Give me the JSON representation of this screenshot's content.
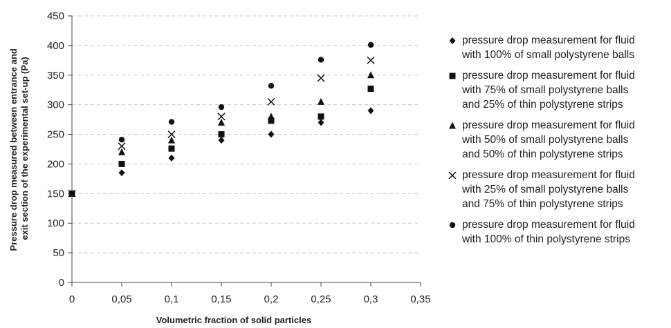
{
  "chart_data": {
    "type": "scatter",
    "xlabel": "Volumetric fraction of solid particles",
    "ylabel_lines": [
      "Pressure drop measured between entrance and",
      "exit section of the experimental set-up (Pa)"
    ],
    "xlim": [
      0,
      0.35
    ],
    "ylim": [
      0,
      450
    ],
    "x_ticks": [
      "0",
      "0,05",
      "0,1",
      "0,15",
      "0,2",
      "0,25",
      "0,3",
      "0,35"
    ],
    "y_ticks": [
      "0",
      "50",
      "100",
      "150",
      "200",
      "250",
      "300",
      "350",
      "400",
      "450"
    ],
    "grid": "horizontal dashed",
    "legend_position": "right",
    "series": [
      {
        "name": "pressure drop measurement for fluid with 100% of small polystyrene balls",
        "legend_lines": [
          "pressure drop measurement for fluid",
          "with 100% of small polystyrene balls"
        ],
        "marker": "diamond",
        "points": [
          [
            0,
            150
          ],
          [
            0.05,
            185
          ],
          [
            0.1,
            210
          ],
          [
            0.15,
            240
          ],
          [
            0.2,
            250
          ],
          [
            0.25,
            270
          ],
          [
            0.3,
            290
          ]
        ]
      },
      {
        "name": "pressure drop measurement for fluid with 75% of small polystyrene balls and 25% of thin polystyrene strips",
        "legend_lines": [
          "pressure drop measurement for fluid",
          "with 75% of small polystyrene balls",
          "and 25% of thin polystyrene strips"
        ],
        "marker": "square",
        "points": [
          [
            0,
            150
          ],
          [
            0.05,
            200
          ],
          [
            0.1,
            226
          ],
          [
            0.15,
            250
          ],
          [
            0.2,
            273
          ],
          [
            0.25,
            280
          ],
          [
            0.3,
            327
          ]
        ]
      },
      {
        "name": "pressure drop measurement for fluid with 50% of small polystyrene balls and 50% of thin polystyrene strips",
        "legend_lines": [
          "pressure drop measurement for fluid",
          "with 50% of small polystyrene balls",
          "and 50% of thin polystyrene strips"
        ],
        "marker": "triangle",
        "points": [
          [
            0,
            150
          ],
          [
            0.05,
            220
          ],
          [
            0.1,
            240
          ],
          [
            0.15,
            270
          ],
          [
            0.2,
            280
          ],
          [
            0.25,
            305
          ],
          [
            0.3,
            350
          ]
        ]
      },
      {
        "name": "pressure drop measurement for fluid with 25% of small polystyrene balls and 75% of thin polystyrene strips",
        "legend_lines": [
          "pressure drop measurement for fluid",
          "with 25% of small polystyrene balls",
          "and 75% of thin polystyrene strips"
        ],
        "marker": "x",
        "points": [
          [
            0,
            150
          ],
          [
            0.05,
            230
          ],
          [
            0.1,
            250
          ],
          [
            0.15,
            280
          ],
          [
            0.2,
            305
          ],
          [
            0.25,
            345
          ],
          [
            0.3,
            375
          ]
        ]
      },
      {
        "name": "pressure drop measurement for fluid with 100% of thin polystyrene strips",
        "legend_lines": [
          "pressure drop measurement for fluid",
          "with 100% of thin polystyrene strips"
        ],
        "marker": "circle",
        "points": [
          [
            0,
            150
          ],
          [
            0.05,
            241
          ],
          [
            0.1,
            271
          ],
          [
            0.15,
            296
          ],
          [
            0.2,
            332
          ],
          [
            0.25,
            376
          ],
          [
            0.3,
            401
          ]
        ]
      }
    ]
  }
}
